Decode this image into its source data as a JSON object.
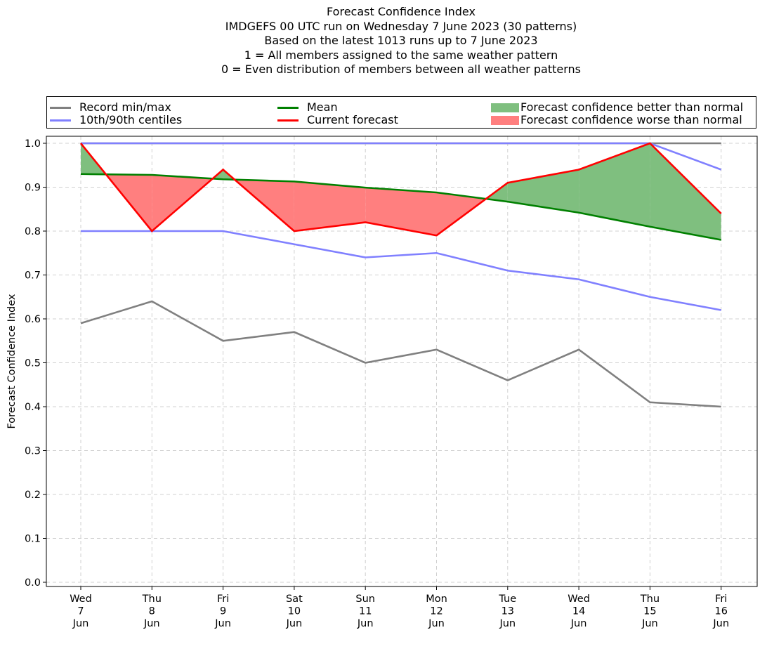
{
  "title_lines": [
    "Forecast Confidence Index",
    "IMDGEFS 00 UTC run on Wednesday 7 June 2023 (30 patterns)",
    "Based on the latest 1013 runs up to 7 June 2023",
    "1 = All members assigned to the same weather pattern",
    "0 = Even distribution of members between all weather patterns"
  ],
  "legend": {
    "record": "Record min/max",
    "centiles": "10th/90th centiles",
    "mean": "Mean",
    "current": "Current forecast",
    "better": "Forecast confidence better than normal",
    "worse": "Forecast confidence worse than normal"
  },
  "colors": {
    "record": "#808080",
    "centiles": "#8080ff",
    "centile_high": "#3a3acc",
    "mean": "#008000",
    "current": "#ff0000",
    "better_fill": "#7fbf7f",
    "worse_fill": "#ff7f7f",
    "grid": "#d0d0d0"
  },
  "chart_data": {
    "type": "line",
    "title": "Forecast Confidence Index",
    "ylabel": "Forecast Confidence Index",
    "xlabel": "",
    "ylim": [
      0.0,
      1.0
    ],
    "yticks": [
      "0.0",
      "0.1",
      "0.2",
      "0.3",
      "0.4",
      "0.5",
      "0.6",
      "0.7",
      "0.8",
      "0.9",
      "1.0"
    ],
    "grid": true,
    "legend_position": "top",
    "categories": [
      [
        "Wed",
        "7",
        "Jun"
      ],
      [
        "Thu",
        "8",
        "Jun"
      ],
      [
        "Fri",
        "9",
        "Jun"
      ],
      [
        "Sat",
        "10",
        "Jun"
      ],
      [
        "Sun",
        "11",
        "Jun"
      ],
      [
        "Mon",
        "12",
        "Jun"
      ],
      [
        "Tue",
        "13",
        "Jun"
      ],
      [
        "Wed",
        "14",
        "Jun"
      ],
      [
        "Thu",
        "15",
        "Jun"
      ],
      [
        "Fri",
        "16",
        "Jun"
      ]
    ],
    "series": [
      {
        "name": "Record min/max",
        "key": "record_min",
        "values": [
          0.59,
          0.64,
          0.55,
          0.57,
          0.5,
          0.53,
          0.46,
          0.53,
          0.41,
          0.4
        ]
      },
      {
        "name": "Record min/max",
        "key": "record_max",
        "values": [
          1.0,
          1.0,
          1.0,
          1.0,
          1.0,
          1.0,
          1.0,
          1.0,
          1.0,
          1.0
        ]
      },
      {
        "name": "10th/90th centiles",
        "key": "p10",
        "values": [
          0.8,
          0.8,
          0.8,
          0.77,
          0.74,
          0.75,
          0.71,
          0.69,
          0.65,
          0.62
        ]
      },
      {
        "name": "10th/90th centiles",
        "key": "p90",
        "values": [
          1.0,
          1.0,
          1.0,
          1.0,
          1.0,
          1.0,
          1.0,
          1.0,
          1.0,
          0.94
        ]
      },
      {
        "name": "Mean",
        "key": "mean",
        "values": [
          0.93,
          0.928,
          0.918,
          0.913,
          0.899,
          0.888,
          0.867,
          0.842,
          0.81,
          0.78
        ]
      },
      {
        "name": "Current forecast",
        "key": "current",
        "values": [
          1.0,
          0.8,
          0.94,
          0.8,
          0.82,
          0.79,
          0.91,
          0.94,
          1.0,
          0.84
        ]
      }
    ]
  }
}
